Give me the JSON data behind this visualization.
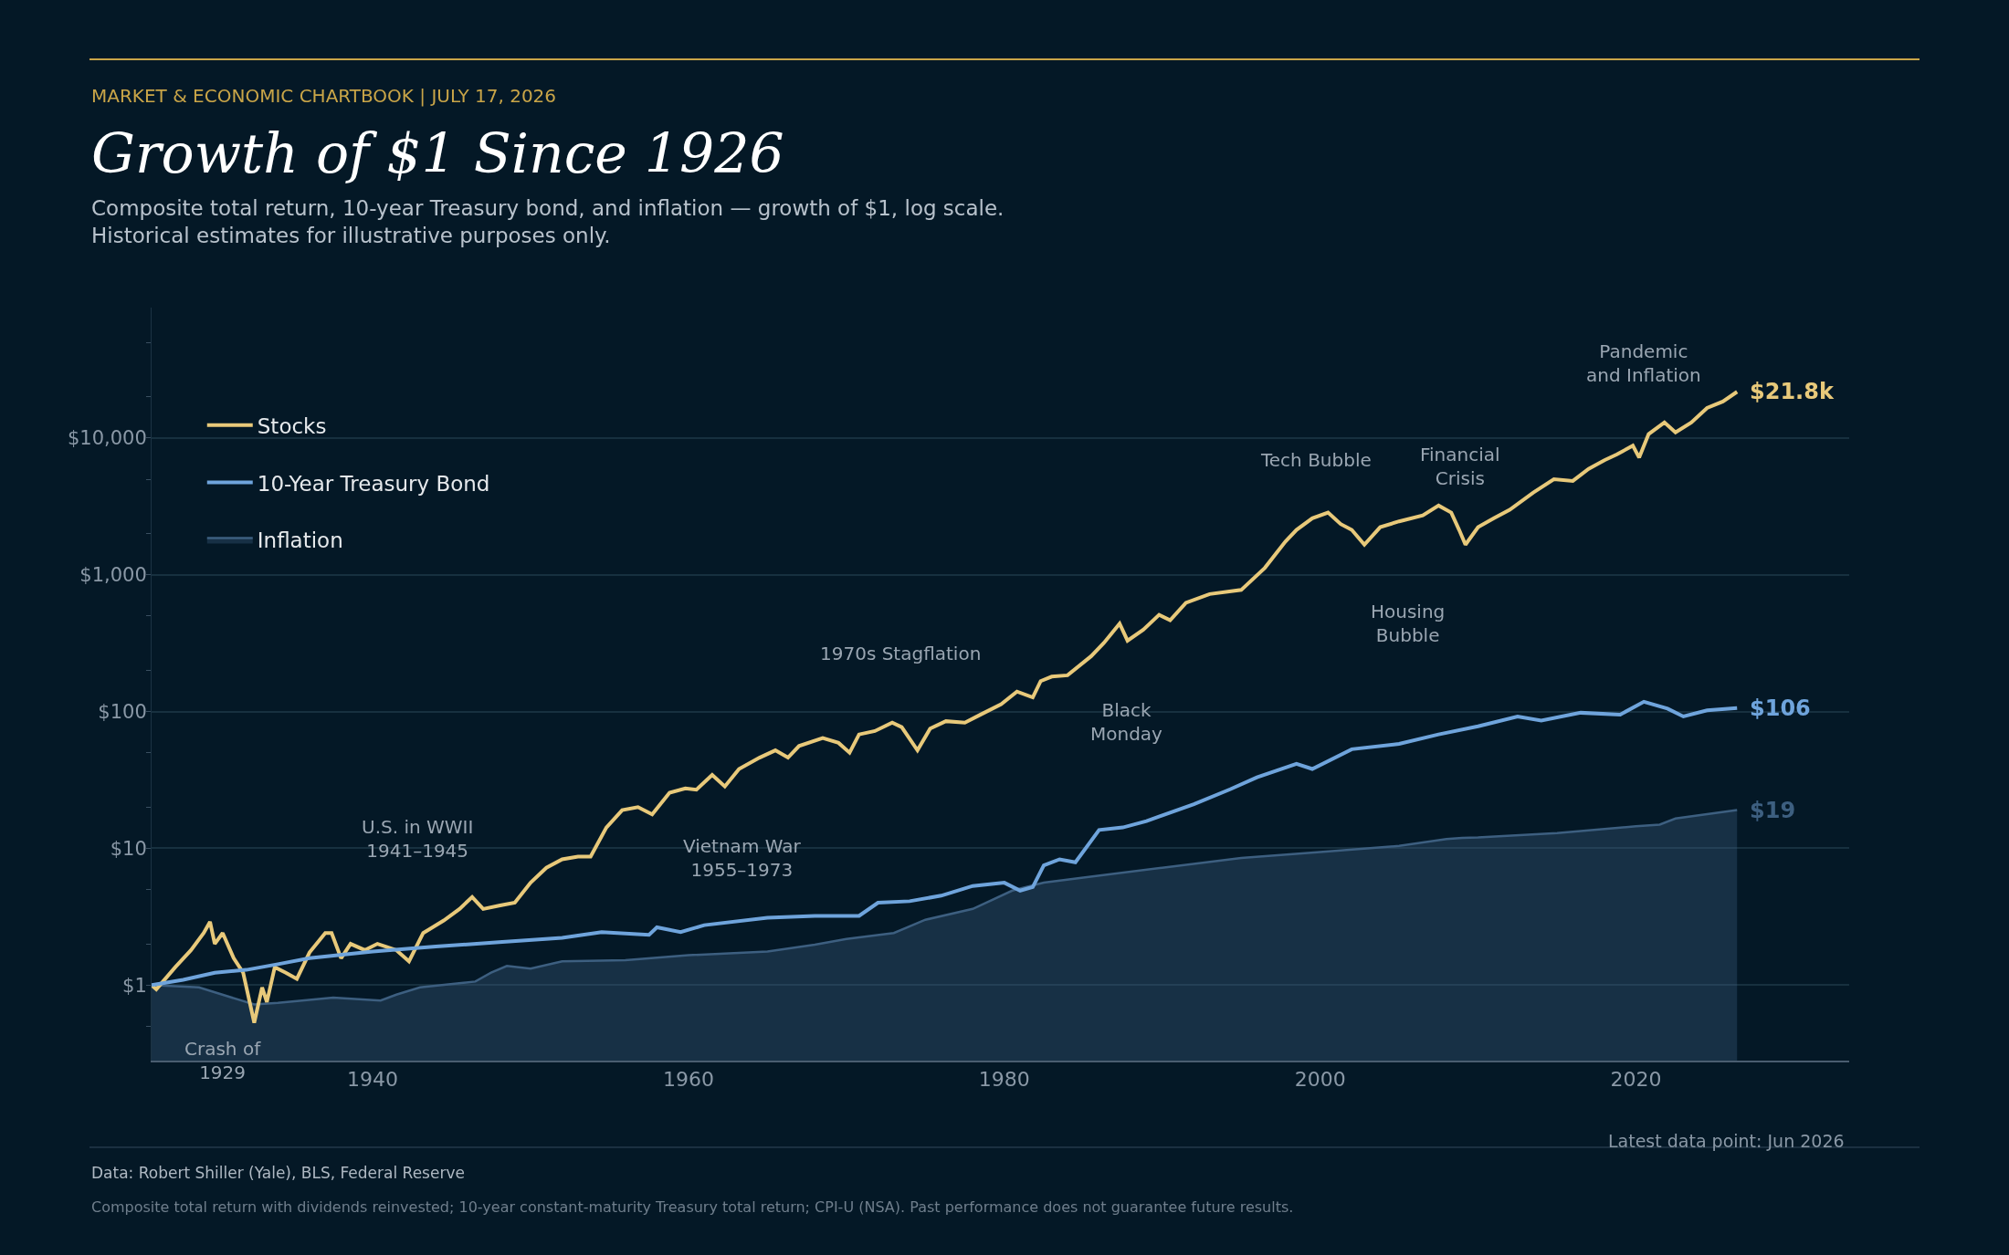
{
  "chart_data": {
    "type": "line",
    "title": "Growth of $1 Since 1926",
    "subtitle": "Composite total return, 10-year Treasury bond, and inflation — growth of $1, log scale.\nHistorical estimates for illustrative purposes only.",
    "xlim": [
      1926,
      2033.5
    ],
    "xticks": [
      1940,
      1960,
      1980,
      2000,
      2020
    ],
    "ylim": [
      0.28,
      90000
    ],
    "log": "y",
    "yticks": [
      {
        "value": 1,
        "label": "$1"
      },
      {
        "value": 10,
        "label": "$10"
      },
      {
        "value": 100,
        "label": "$100"
      },
      {
        "value": 1000,
        "label": "$1,000"
      },
      {
        "value": 10000,
        "label": "$10,000"
      }
    ],
    "grid": "y",
    "legend": "top left",
    "series": [
      {
        "name": "Stocks",
        "color": "#e8c97a",
        "x": [
          1926.0,
          1926.3,
          1927.5,
          1928.5,
          1929.3,
          1929.7,
          1930.0,
          1930.5,
          1931.2,
          1931.8,
          1932.5,
          1933.0,
          1933.3,
          1933.8,
          1934.5,
          1935.2,
          1936.0,
          1937.0,
          1937.4,
          1938.0,
          1938.6,
          1939.5,
          1940.3,
          1941.5,
          1942.3,
          1943.2,
          1944.5,
          1945.5,
          1946.3,
          1947.0,
          1948.0,
          1949.0,
          1950.0,
          1951.0,
          1952.0,
          1953.0,
          1953.8,
          1954.8,
          1955.8,
          1956.8,
          1957.7,
          1958.8,
          1959.8,
          1960.5,
          1961.5,
          1962.3,
          1963.2,
          1964.5,
          1965.5,
          1966.3,
          1967.0,
          1968.5,
          1969.5,
          1970.2,
          1970.8,
          1971.8,
          1972.9,
          1973.5,
          1974.5,
          1975.3,
          1976.3,
          1977.5,
          1978.5,
          1979.8,
          1980.8,
          1981.8,
          1982.3,
          1983.0,
          1984.0,
          1985.5,
          1986.3,
          1987.3,
          1987.8,
          1988.8,
          1989.8,
          1990.5,
          1991.5,
          1993.0,
          1995.0,
          1996.5,
          1997.8,
          1998.5,
          1999.5,
          2000.5,
          2001.3,
          2002.0,
          2002.8,
          2003.8,
          2005.0,
          2006.5,
          2007.5,
          2008.3,
          2008.8,
          2009.2,
          2010.0,
          2011.0,
          2012.0,
          2013.5,
          2014.8,
          2016.0,
          2017.0,
          2018.0,
          2018.8,
          2019.8,
          2020.2,
          2020.8,
          2021.8,
          2022.5,
          2023.5,
          2024.5,
          2025.5,
          2026.4
        ],
        "values": [
          1.0,
          0.93,
          1.35,
          1.8,
          2.4,
          2.9,
          2.0,
          2.4,
          1.57,
          1.23,
          0.53,
          0.96,
          0.75,
          1.35,
          1.23,
          1.11,
          1.73,
          2.4,
          2.4,
          1.57,
          2.0,
          1.8,
          2.0,
          1.8,
          1.49,
          2.4,
          2.96,
          3.6,
          4.4,
          3.6,
          3.8,
          4.0,
          5.6,
          7.2,
          8.3,
          8.7,
          8.7,
          14.2,
          19,
          20,
          17.7,
          25.5,
          27.4,
          26.8,
          34.4,
          28.3,
          38,
          46,
          52,
          46,
          56,
          64,
          59,
          50,
          68,
          72,
          83,
          77,
          52,
          75,
          85,
          83,
          95,
          113,
          140,
          127,
          167,
          180,
          184,
          254,
          317,
          440,
          330,
          397,
          510,
          465,
          625,
          723,
          775,
          1125,
          1750,
          2130,
          2590,
          2850,
          2350,
          2130,
          1660,
          2230,
          2460,
          2720,
          3210,
          2850,
          2130,
          1660,
          2230,
          2590,
          2990,
          4000,
          5000,
          4860,
          5950,
          6890,
          7600,
          8800,
          7200,
          10700,
          13000,
          11000,
          13000,
          16600,
          18500,
          21800
        ],
        "value_labels": [
          null,
          null,
          null,
          null,
          null,
          null,
          null,
          null,
          null,
          null,
          null,
          null,
          null,
          null,
          null,
          null,
          null,
          null,
          null,
          null,
          null,
          null,
          null,
          null,
          null,
          null,
          null,
          null,
          null,
          null,
          null,
          null,
          null,
          null,
          null,
          null,
          null,
          null,
          null,
          null,
          null,
          null,
          null,
          null,
          null,
          null,
          null,
          null,
          null,
          null,
          null,
          null,
          null,
          null,
          null,
          null,
          null,
          null,
          null,
          null,
          null,
          null,
          null,
          null,
          null,
          null,
          null,
          null,
          null,
          null,
          null,
          null,
          null,
          null,
          null,
          null,
          null,
          null,
          null,
          null,
          null,
          null,
          null,
          null,
          null,
          null,
          null,
          null,
          null,
          null,
          null,
          null,
          null,
          null,
          null,
          null,
          null,
          null,
          null,
          null,
          null,
          null,
          null,
          null,
          null,
          null,
          null,
          null,
          null,
          null,
          null,
          "$21.8k"
        ]
      },
      {
        "name": "10-Year Treasury Bond",
        "color": "#6fa4dc",
        "x": [
          1926,
          1928,
          1930,
          1932,
          1934,
          1936,
          1940,
          1944,
          1948,
          1952,
          1954.5,
          1957.5,
          1958,
          1959.5,
          1961,
          1965,
          1968,
          1970.8,
          1972,
          1974,
          1976,
          1978,
          1980,
          1981,
          1981.8,
          1982.5,
          1983.5,
          1984.5,
          1986,
          1987.5,
          1989,
          1992,
          1994.3,
          1996,
          1998.5,
          1999.5,
          2002,
          2005,
          2007.5,
          2010,
          2012.5,
          2014,
          2016.5,
          2019,
          2020.5,
          2022,
          2023,
          2024.5,
          2026.4
        ],
        "values": [
          1.0,
          1.09,
          1.23,
          1.29,
          1.42,
          1.57,
          1.76,
          1.91,
          2.06,
          2.21,
          2.44,
          2.33,
          2.64,
          2.44,
          2.74,
          3.1,
          3.2,
          3.2,
          4.0,
          4.1,
          4.5,
          5.3,
          5.6,
          4.9,
          5.2,
          7.5,
          8.3,
          7.9,
          13.6,
          14.2,
          15.8,
          21,
          27,
          33,
          41.5,
          38,
          53,
          58,
          68,
          78,
          92,
          86,
          98,
          95,
          118,
          105,
          92,
          102,
          106
        ],
        "value_labels": [
          null,
          null,
          null,
          null,
          null,
          null,
          null,
          null,
          null,
          null,
          null,
          null,
          null,
          null,
          null,
          null,
          null,
          null,
          null,
          null,
          null,
          null,
          null,
          null,
          null,
          null,
          null,
          null,
          null,
          null,
          null,
          null,
          null,
          null,
          null,
          null,
          null,
          null,
          null,
          null,
          null,
          null,
          null,
          null,
          null,
          null,
          null,
          null,
          "$106"
        ]
      },
      {
        "name": "Inflation",
        "color": "#3d5f80",
        "type": "area",
        "x": [
          1926,
          1929,
          1932.5,
          1934,
          1937.5,
          1940.5,
          1941.5,
          1943,
          1946.5,
          1947.5,
          1948.5,
          1950,
          1952,
          1956,
          1960,
          1965,
          1968,
          1970,
          1973,
          1975,
          1978,
          1980.5,
          1982.5,
          1985,
          1990,
          1995,
          2000,
          2005,
          2008,
          2009,
          2010,
          2015,
          2020,
          2021.5,
          2022.5,
          2026.4
        ],
        "values": [
          1.0,
          0.96,
          0.72,
          0.74,
          0.81,
          0.77,
          0.85,
          0.96,
          1.06,
          1.23,
          1.38,
          1.32,
          1.49,
          1.52,
          1.65,
          1.76,
          1.97,
          2.17,
          2.4,
          3.0,
          3.6,
          4.9,
          5.6,
          6.1,
          7.2,
          8.5,
          9.4,
          10.4,
          11.7,
          11.9,
          12.0,
          12.9,
          14.5,
          14.9,
          16.5,
          19
        ],
        "value_labels": [
          null,
          null,
          null,
          null,
          null,
          null,
          null,
          null,
          null,
          null,
          null,
          null,
          null,
          null,
          null,
          null,
          null,
          null,
          null,
          null,
          null,
          null,
          null,
          null,
          null,
          null,
          null,
          null,
          null,
          null,
          null,
          null,
          null,
          null,
          null,
          "$19"
        ]
      }
    ],
    "annotations": [
      "MARKET & ECONOMIC CHARTBOOK | JULY 17, 2026",
      "Latest data point: Jun 2026",
      "Data: Robert Shiller (Yale), BLS, Federal Reserve",
      "Composite total return with dividends reinvested; 10-year constant-maturity Treasury total return; CPI-U (NSA). Past performance does not guarantee future results.",
      "Crash of\n1929",
      "U.S. in WWII\n1941–1945",
      "Vietnam War\n1955–1973",
      "1970s Stagflation",
      "Black\nMonday",
      "Tech Bubble",
      "Financial\nCrisis",
      "Housing\nBubble",
      "Pandemic\nand Inflation"
    ]
  }
}
